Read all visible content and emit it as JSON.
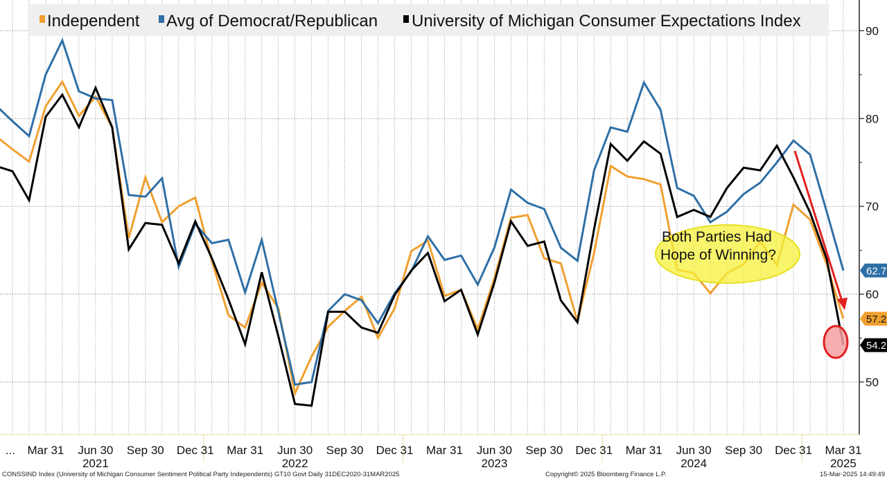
{
  "chart_data": {
    "type": "line",
    "title": "",
    "xlabel": "",
    "ylabel": "",
    "ylim": [
      44,
      93.5
    ],
    "y_ticks": [
      50,
      60,
      70,
      80,
      90
    ],
    "y_axis_side": "right",
    "grid": true,
    "legend_placement": "top",
    "x": [
      "2020-12",
      "2021-01",
      "2021-02",
      "2021-03",
      "2021-04",
      "2021-05",
      "2021-06",
      "2021-07",
      "2021-08",
      "2021-09",
      "2021-10",
      "2021-11",
      "2021-12",
      "2022-01",
      "2022-02",
      "2022-03",
      "2022-04",
      "2022-05",
      "2022-06",
      "2022-07",
      "2022-08",
      "2022-09",
      "2022-10",
      "2022-11",
      "2022-12",
      "2023-01",
      "2023-02",
      "2023-03",
      "2023-04",
      "2023-05",
      "2023-06",
      "2023-07",
      "2023-08",
      "2023-09",
      "2023-10",
      "2023-11",
      "2023-12",
      "2024-01",
      "2024-02",
      "2024-03",
      "2024-04",
      "2024-05",
      "2024-06",
      "2024-07",
      "2024-08",
      "2024-09",
      "2024-10",
      "2024-11",
      "2024-12",
      "2025-01",
      "2025-02",
      "2025-03"
    ],
    "x_tick_labels": [
      {
        "month": "2021-03",
        "label": "Mar 31"
      },
      {
        "month": "2021-06",
        "label": "Jun 30"
      },
      {
        "month": "2021-09",
        "label": "Sep 30"
      },
      {
        "month": "2021-12",
        "label": "Dec 31"
      },
      {
        "month": "2022-03",
        "label": "Mar 31"
      },
      {
        "month": "2022-06",
        "label": "Jun 30"
      },
      {
        "month": "2022-09",
        "label": "Sep 30"
      },
      {
        "month": "2022-12",
        "label": "Dec 31"
      },
      {
        "month": "2023-03",
        "label": "Mar 31"
      },
      {
        "month": "2023-06",
        "label": "Jun 30"
      },
      {
        "month": "2023-09",
        "label": "Sep 30"
      },
      {
        "month": "2023-12",
        "label": "Dec 31"
      },
      {
        "month": "2024-03",
        "label": "Mar 31"
      },
      {
        "month": "2024-06",
        "label": "Jun 30"
      },
      {
        "month": "2024-09",
        "label": "Sep 30"
      },
      {
        "month": "2024-12",
        "label": "Dec 31"
      },
      {
        "month": "2025-03",
        "label": "Mar 31"
      }
    ],
    "x_leading_label": "...",
    "year_labels": [
      {
        "month": "2021-06",
        "label": "2021"
      },
      {
        "month": "2022-06",
        "label": "2022"
      },
      {
        "month": "2023-06",
        "label": "2023"
      },
      {
        "month": "2024-06",
        "label": "2024"
      },
      {
        "month": "2025-03",
        "label": "2025"
      }
    ],
    "series": [
      {
        "name": "Independent",
        "color": "#f0a030",
        "last_label": "57.2",
        "values": [
          78.0,
          76.5,
          75.1,
          81.4,
          84.2,
          80.3,
          82.5,
          79.0,
          66.4,
          73.3,
          68.2,
          70.0,
          71.0,
          63.8,
          57.6,
          56.2,
          61.3,
          58.4,
          48.7,
          52.9,
          56.3,
          58.1,
          59.7,
          55.0,
          58.4,
          64.9,
          66.1,
          59.8,
          60.5,
          56.0,
          61.8,
          68.7,
          69.0,
          64.1,
          63.5,
          56.9,
          64.7,
          74.6,
          73.4,
          73.1,
          72.5,
          62.8,
          62.4,
          60.1,
          62.4,
          63.4,
          66.0,
          63.3,
          70.2,
          68.5,
          63.4,
          57.2
        ]
      },
      {
        "name": "Avg of Democrat/Republican",
        "color": "#2e6fa6",
        "last_label": "62.7",
        "values": [
          81.5,
          79.7,
          78.0,
          85.0,
          88.9,
          83.1,
          82.3,
          82.1,
          71.3,
          71.1,
          73.2,
          63.1,
          68.0,
          65.8,
          66.2,
          60.2,
          66.2,
          58.0,
          49.7,
          50.0,
          58.1,
          60.0,
          59.3,
          56.7,
          60.1,
          62.6,
          66.6,
          63.9,
          64.4,
          61.1,
          65.3,
          71.9,
          70.4,
          69.7,
          65.3,
          63.8,
          74.1,
          79.0,
          78.5,
          84.1,
          81.0,
          72.1,
          71.2,
          68.2,
          69.4,
          71.4,
          72.7,
          75.0,
          77.5,
          75.9,
          69.4,
          62.7
        ]
      },
      {
        "name": "University of Michigan Consumer Expectations Index",
        "color": "#000000",
        "last_label": "54.2",
        "values": [
          74.6,
          74.0,
          70.7,
          80.2,
          82.7,
          79.0,
          83.5,
          79.0,
          65.1,
          68.1,
          67.9,
          63.5,
          68.3,
          64.1,
          59.4,
          54.3,
          62.5,
          55.2,
          47.5,
          47.3,
          58.0,
          58.0,
          56.2,
          55.6,
          59.9,
          62.7,
          64.7,
          59.2,
          60.5,
          55.4,
          61.3,
          68.3,
          65.5,
          66.0,
          59.3,
          56.8,
          67.4,
          77.1,
          75.2,
          77.4,
          76.0,
          68.8,
          69.6,
          68.8,
          72.1,
          74.4,
          74.1,
          76.9,
          73.3,
          69.3,
          64.0,
          54.2
        ]
      }
    ],
    "annotations": {
      "callout_lines": [
        "Both Parties Had",
        "Hope of Winning?"
      ],
      "callout_color": "#f5f03a",
      "arrow_color": "#e02020",
      "highlight_circle_color": "#f7a0a0"
    }
  },
  "footer": {
    "source": "CONSSIND Index (University of Michigan Consumer Sentiment Political Party Independents) GT10  Govt  Daily 31DEC2020-31MAR2025",
    "copyright": "Copyright© 2025 Bloomberg Finance L.P.",
    "timestamp": "15-Mar-2025 14:49:49"
  }
}
